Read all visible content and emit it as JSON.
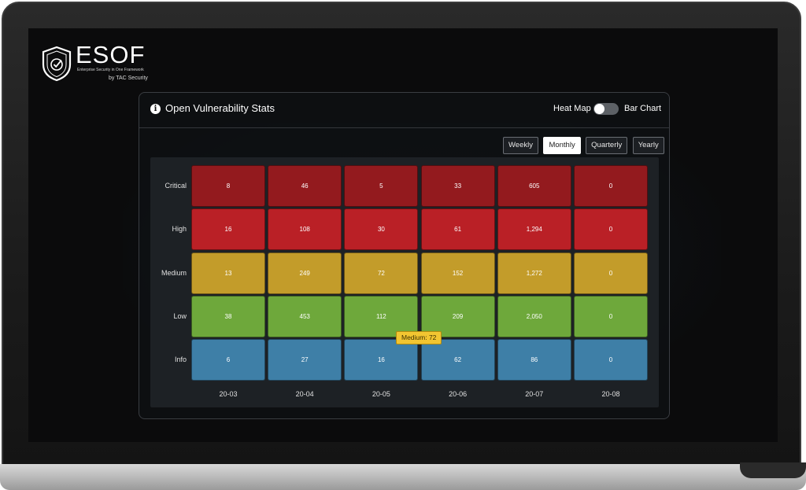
{
  "brand": {
    "name": "ESOF",
    "tagline": "Enterprise Security in One Framework",
    "by": "by TAC Security"
  },
  "widget": {
    "title": "Open Vulnerability Stats",
    "toggle_left": "Heat Map",
    "toggle_right": "Bar Chart",
    "toggle_state": "Heat Map",
    "periods": [
      "Weekly",
      "Monthly",
      "Quarterly",
      "Yearly"
    ],
    "active_period": "Monthly",
    "tooltip": "Medium: 72"
  },
  "colors": {
    "Critical": "#931a1e",
    "High": "#ba2026",
    "Medium": "#c39c2a",
    "Low": "#6ea83b",
    "Info": "#3e7fa7"
  },
  "chart_data": {
    "type": "heatmap",
    "x": [
      "20-03",
      "20-04",
      "20-05",
      "20-06",
      "20-07",
      "20-08"
    ],
    "y": [
      "Critical",
      "High",
      "Medium",
      "Low",
      "Info"
    ],
    "values": [
      [
        "8",
        "46",
        "5",
        "33",
        "605",
        "0"
      ],
      [
        "16",
        "108",
        "30",
        "61",
        "1,294",
        "0"
      ],
      [
        "13",
        "249",
        "72",
        "152",
        "1,272",
        "0"
      ],
      [
        "38",
        "453",
        "112",
        "209",
        "2,050",
        "0"
      ],
      [
        "6",
        "27",
        "16",
        "62",
        "86",
        "0"
      ]
    ],
    "legend": "none"
  }
}
